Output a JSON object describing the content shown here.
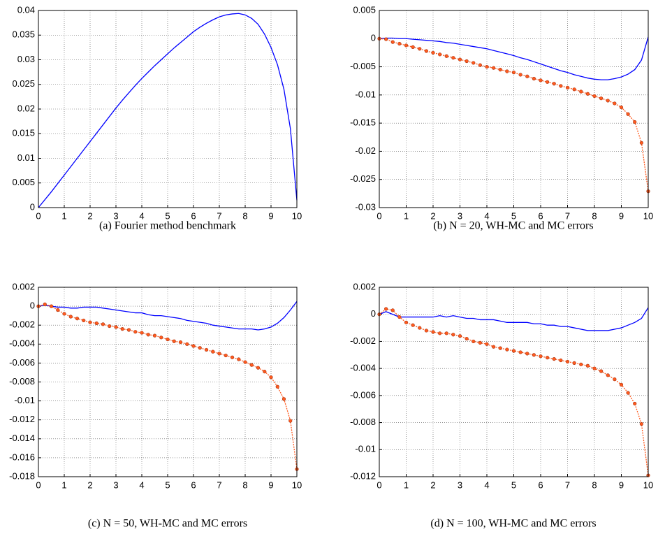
{
  "chart_data": [
    {
      "type": "line",
      "caption": "(a) Fourier method benchmark",
      "x": [
        0,
        0.25,
        0.5,
        0.75,
        1,
        1.25,
        1.5,
        1.75,
        2,
        2.25,
        2.5,
        2.75,
        3,
        3.25,
        3.5,
        3.75,
        4,
        4.25,
        4.5,
        4.75,
        5,
        5.25,
        5.5,
        5.75,
        6,
        6.25,
        6.5,
        6.75,
        7,
        7.25,
        7.5,
        7.75,
        8,
        8.25,
        8.5,
        8.75,
        9,
        9.25,
        9.5,
        9.75,
        10
      ],
      "xlim": [
        0,
        10
      ],
      "xticks": [
        0,
        1,
        2,
        3,
        4,
        5,
        6,
        7,
        8,
        9,
        10
      ],
      "ylim": [
        0,
        0.04
      ],
      "yticks": [
        0,
        0.005,
        0.01,
        0.015,
        0.02,
        0.025,
        0.03,
        0.035,
        0.04
      ],
      "grid": true,
      "series": [
        {
          "color": "#0000ff",
          "values": [
            0,
            0.0016,
            0.0032,
            0.0049,
            0.0066,
            0.0083,
            0.01,
            0.0117,
            0.0134,
            0.0151,
            0.0168,
            0.0185,
            0.0202,
            0.0218,
            0.0233,
            0.0248,
            0.0262,
            0.0275,
            0.0288,
            0.03,
            0.0312,
            0.0324,
            0.0335,
            0.0346,
            0.0357,
            0.0366,
            0.0374,
            0.0381,
            0.0387,
            0.0391,
            0.0393,
            0.0394,
            0.0391,
            0.0384,
            0.0372,
            0.0352,
            0.0325,
            0.029,
            0.024,
            0.016,
            0.0015
          ]
        }
      ]
    },
    {
      "type": "line",
      "caption": "(b) N = 20, WH-MC and MC errors",
      "x": [
        0,
        0.25,
        0.5,
        0.75,
        1,
        1.25,
        1.5,
        1.75,
        2,
        2.25,
        2.5,
        2.75,
        3,
        3.25,
        3.5,
        3.75,
        4,
        4.25,
        4.5,
        4.75,
        5,
        5.25,
        5.5,
        5.75,
        6,
        6.25,
        6.5,
        6.75,
        7,
        7.25,
        7.5,
        7.75,
        8,
        8.25,
        8.5,
        8.75,
        9,
        9.25,
        9.5,
        9.75,
        10
      ],
      "xlim": [
        0,
        10
      ],
      "xticks": [
        0,
        1,
        2,
        3,
        4,
        5,
        6,
        7,
        8,
        9,
        10
      ],
      "ylim": [
        -0.03,
        0.005
      ],
      "yticks": [
        -0.03,
        -0.025,
        -0.02,
        -0.015,
        -0.01,
        -0.005,
        0,
        0.005
      ],
      "grid": true,
      "series": [
        {
          "color": "#0000ff",
          "values": [
            0,
            0.0001,
            0.0001,
            0,
            0,
            -0.0001,
            -0.0002,
            -0.0003,
            -0.0004,
            -0.0005,
            -0.0007,
            -0.0008,
            -0.001,
            -0.0012,
            -0.0014,
            -0.0016,
            -0.0018,
            -0.0021,
            -0.0024,
            -0.0027,
            -0.003,
            -0.0034,
            -0.0037,
            -0.0041,
            -0.0045,
            -0.0049,
            -0.0053,
            -0.0057,
            -0.006,
            -0.0064,
            -0.0067,
            -0.007,
            -0.0072,
            -0.0073,
            -0.0073,
            -0.0071,
            -0.0068,
            -0.0063,
            -0.0055,
            -0.0038,
            0.0003
          ]
        },
        {
          "color": "#ff5a1e",
          "markers": true,
          "dotted": true,
          "values": [
            0,
            -0.0001,
            -0.0006,
            -0.0009,
            -0.0012,
            -0.0015,
            -0.0018,
            -0.0022,
            -0.0025,
            -0.0028,
            -0.0031,
            -0.0034,
            -0.0037,
            -0.004,
            -0.0043,
            -0.0047,
            -0.005,
            -0.0052,
            -0.0055,
            -0.0058,
            -0.006,
            -0.0064,
            -0.0067,
            -0.0071,
            -0.0074,
            -0.0077,
            -0.008,
            -0.0084,
            -0.0087,
            -0.009,
            -0.0094,
            -0.0098,
            -0.0102,
            -0.0106,
            -0.011,
            -0.0115,
            -0.0122,
            -0.0134,
            -0.0148,
            -0.0185,
            -0.0271
          ]
        }
      ]
    },
    {
      "type": "line",
      "caption": "(c) N = 50, WH-MC and MC errors",
      "x": [
        0,
        0.25,
        0.5,
        0.75,
        1,
        1.25,
        1.5,
        1.75,
        2,
        2.25,
        2.5,
        2.75,
        3,
        3.25,
        3.5,
        3.75,
        4,
        4.25,
        4.5,
        4.75,
        5,
        5.25,
        5.5,
        5.75,
        6,
        6.25,
        6.5,
        6.75,
        7,
        7.25,
        7.5,
        7.75,
        8,
        8.25,
        8.5,
        8.75,
        9,
        9.25,
        9.5,
        9.75,
        10
      ],
      "xlim": [
        0,
        10
      ],
      "xticks": [
        0,
        1,
        2,
        3,
        4,
        5,
        6,
        7,
        8,
        9,
        10
      ],
      "ylim": [
        -0.018,
        0.002
      ],
      "yticks": [
        -0.018,
        -0.016,
        -0.014,
        -0.012,
        -0.01,
        -0.008,
        -0.006,
        -0.004,
        -0.002,
        0,
        0.002
      ],
      "grid": true,
      "series": [
        {
          "color": "#0000ff",
          "values": [
            0,
            0.0001,
            0,
            -0.0001,
            -0.0001,
            -0.0002,
            -0.0002,
            -0.0001,
            -0.0001,
            -0.0001,
            -0.0002,
            -0.0003,
            -0.0004,
            -0.0005,
            -0.0006,
            -0.0007,
            -0.0007,
            -0.0009,
            -0.001,
            -0.001,
            -0.0011,
            -0.0012,
            -0.0013,
            -0.0015,
            -0.0016,
            -0.0017,
            -0.0018,
            -0.002,
            -0.0021,
            -0.0022,
            -0.0023,
            -0.0024,
            -0.0024,
            -0.0024,
            -0.0025,
            -0.0024,
            -0.0022,
            -0.0018,
            -0.0012,
            -0.0004,
            0.0005
          ]
        },
        {
          "color": "#ff5a1e",
          "markers": true,
          "dotted": true,
          "values": [
            0,
            0.0002,
            0,
            -0.0004,
            -0.0008,
            -0.0011,
            -0.0013,
            -0.0015,
            -0.0017,
            -0.0018,
            -0.0019,
            -0.0021,
            -0.0022,
            -0.0024,
            -0.0025,
            -0.0027,
            -0.0028,
            -0.003,
            -0.0031,
            -0.0033,
            -0.0035,
            -0.0037,
            -0.0038,
            -0.004,
            -0.0042,
            -0.0044,
            -0.0046,
            -0.0048,
            -0.005,
            -0.0052,
            -0.0054,
            -0.0056,
            -0.0059,
            -0.0062,
            -0.0065,
            -0.0069,
            -0.0075,
            -0.0085,
            -0.0098,
            -0.0121,
            -0.0172
          ]
        }
      ]
    },
    {
      "type": "line",
      "caption": "(d) N = 100, WH-MC and MC errors",
      "x": [
        0,
        0.25,
        0.5,
        0.75,
        1,
        1.25,
        1.5,
        1.75,
        2,
        2.25,
        2.5,
        2.75,
        3,
        3.25,
        3.5,
        3.75,
        4,
        4.25,
        4.5,
        4.75,
        5,
        5.25,
        5.5,
        5.75,
        6,
        6.25,
        6.5,
        6.75,
        7,
        7.25,
        7.5,
        7.75,
        8,
        8.25,
        8.5,
        8.75,
        9,
        9.25,
        9.5,
        9.75,
        10
      ],
      "xlim": [
        0,
        10
      ],
      "xticks": [
        0,
        1,
        2,
        3,
        4,
        5,
        6,
        7,
        8,
        9,
        10
      ],
      "ylim": [
        -0.012,
        0.002
      ],
      "yticks": [
        -0.012,
        -0.01,
        -0.008,
        -0.006,
        -0.004,
        -0.002,
        0,
        0.002
      ],
      "grid": true,
      "series": [
        {
          "color": "#0000ff",
          "values": [
            0,
            0.0002,
            0,
            -0.0002,
            -0.0002,
            -0.0002,
            -0.0002,
            -0.0002,
            -0.0002,
            -0.0001,
            -0.0002,
            -0.0001,
            -0.0002,
            -0.0003,
            -0.0003,
            -0.0004,
            -0.0004,
            -0.0004,
            -0.0005,
            -0.0006,
            -0.0006,
            -0.0006,
            -0.0006,
            -0.0007,
            -0.0007,
            -0.0008,
            -0.0008,
            -0.0009,
            -0.0009,
            -0.001,
            -0.0011,
            -0.0012,
            -0.0012,
            -0.0012,
            -0.0012,
            -0.0011,
            -0.001,
            -0.0008,
            -0.0006,
            -0.0003,
            0.0005
          ]
        },
        {
          "color": "#ff5a1e",
          "markers": true,
          "dotted": true,
          "values": [
            0,
            0.0004,
            0.0003,
            -0.0002,
            -0.0006,
            -0.0008,
            -0.001,
            -0.0012,
            -0.0013,
            -0.0014,
            -0.0014,
            -0.0015,
            -0.0016,
            -0.0018,
            -0.002,
            -0.0021,
            -0.0022,
            -0.0024,
            -0.0025,
            -0.0026,
            -0.0027,
            -0.0028,
            -0.0029,
            -0.003,
            -0.0031,
            -0.0032,
            -0.0033,
            -0.0034,
            -0.0035,
            -0.0036,
            -0.0037,
            -0.0038,
            -0.004,
            -0.0042,
            -0.0045,
            -0.0048,
            -0.0052,
            -0.0058,
            -0.0066,
            -0.0081,
            -0.0119
          ]
        }
      ]
    }
  ]
}
